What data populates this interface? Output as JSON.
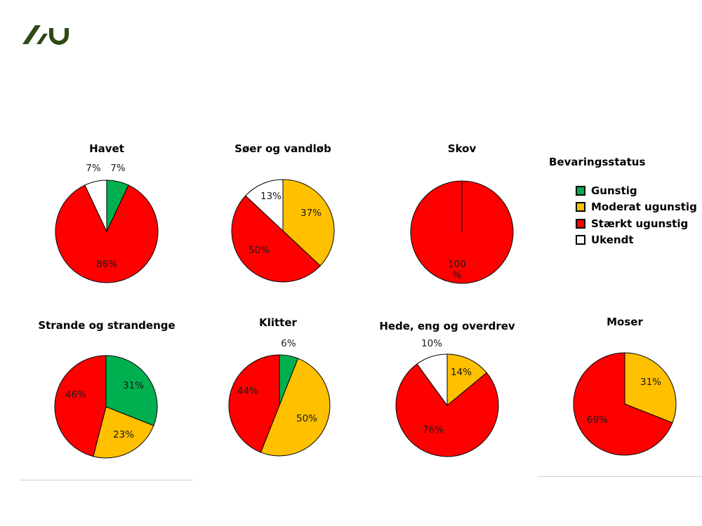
{
  "legend": {
    "title": "Bevaringsstatus",
    "items": [
      {
        "label": "Gunstig",
        "color": "#00b050"
      },
      {
        "label": "Moderat ugunstig",
        "color": "#ffc000"
      },
      {
        "label": "Stærkt ugunstig",
        "color": "#ff0000"
      },
      {
        "label": "Ukendt",
        "color": "#ffffff"
      }
    ]
  },
  "chart_data": [
    {
      "type": "pie",
      "title": "Havet",
      "slices": [
        {
          "category": "Gunstig",
          "value": 7,
          "label": "7%"
        },
        {
          "category": "Stærkt ugunstig",
          "value": 86,
          "label": "86%"
        },
        {
          "category": "Ukendt",
          "value": 7,
          "label": "7%"
        }
      ]
    },
    {
      "type": "pie",
      "title": "Søer og vandløb",
      "slices": [
        {
          "category": "Moderat ugunstig",
          "value": 37,
          "label": "37%"
        },
        {
          "category": "Stærkt ugunstig",
          "value": 50,
          "label": "50%"
        },
        {
          "category": "Ukendt",
          "value": 13,
          "label": "13%"
        }
      ]
    },
    {
      "type": "pie",
      "title": "Skov",
      "slices": [
        {
          "category": "Stærkt ugunstig",
          "value": 100,
          "label": "100 %"
        }
      ]
    },
    {
      "type": "pie",
      "title": "Strande og strandenge",
      "slices": [
        {
          "category": "Gunstig",
          "value": 31,
          "label": "31%"
        },
        {
          "category": "Moderat ugunstig",
          "value": 23,
          "label": "23%"
        },
        {
          "category": "Stærkt ugunstig",
          "value": 46,
          "label": "46%"
        }
      ]
    },
    {
      "type": "pie",
      "title": "Klitter",
      "slices": [
        {
          "category": "Gunstig",
          "value": 6,
          "label": "6%"
        },
        {
          "category": "Moderat ugunstig",
          "value": 50,
          "label": "50%"
        },
        {
          "category": "Stærkt ugunstig",
          "value": 44,
          "label": "44%"
        }
      ]
    },
    {
      "type": "pie",
      "title": "Hede, eng og overdrev",
      "slices": [
        {
          "category": "Moderat ugunstig",
          "value": 14,
          "label": "14%"
        },
        {
          "category": "Stærkt ugunstig",
          "value": 76,
          "label": "76%"
        },
        {
          "category": "Ukendt",
          "value": 10,
          "label": "10%"
        }
      ]
    },
    {
      "type": "pie",
      "title": "Moser",
      "slices": [
        {
          "category": "Moderat ugunstig",
          "value": 31,
          "label": "31%"
        },
        {
          "category": "Stærkt ugunstig",
          "value": 69,
          "label": "69%"
        }
      ]
    }
  ]
}
